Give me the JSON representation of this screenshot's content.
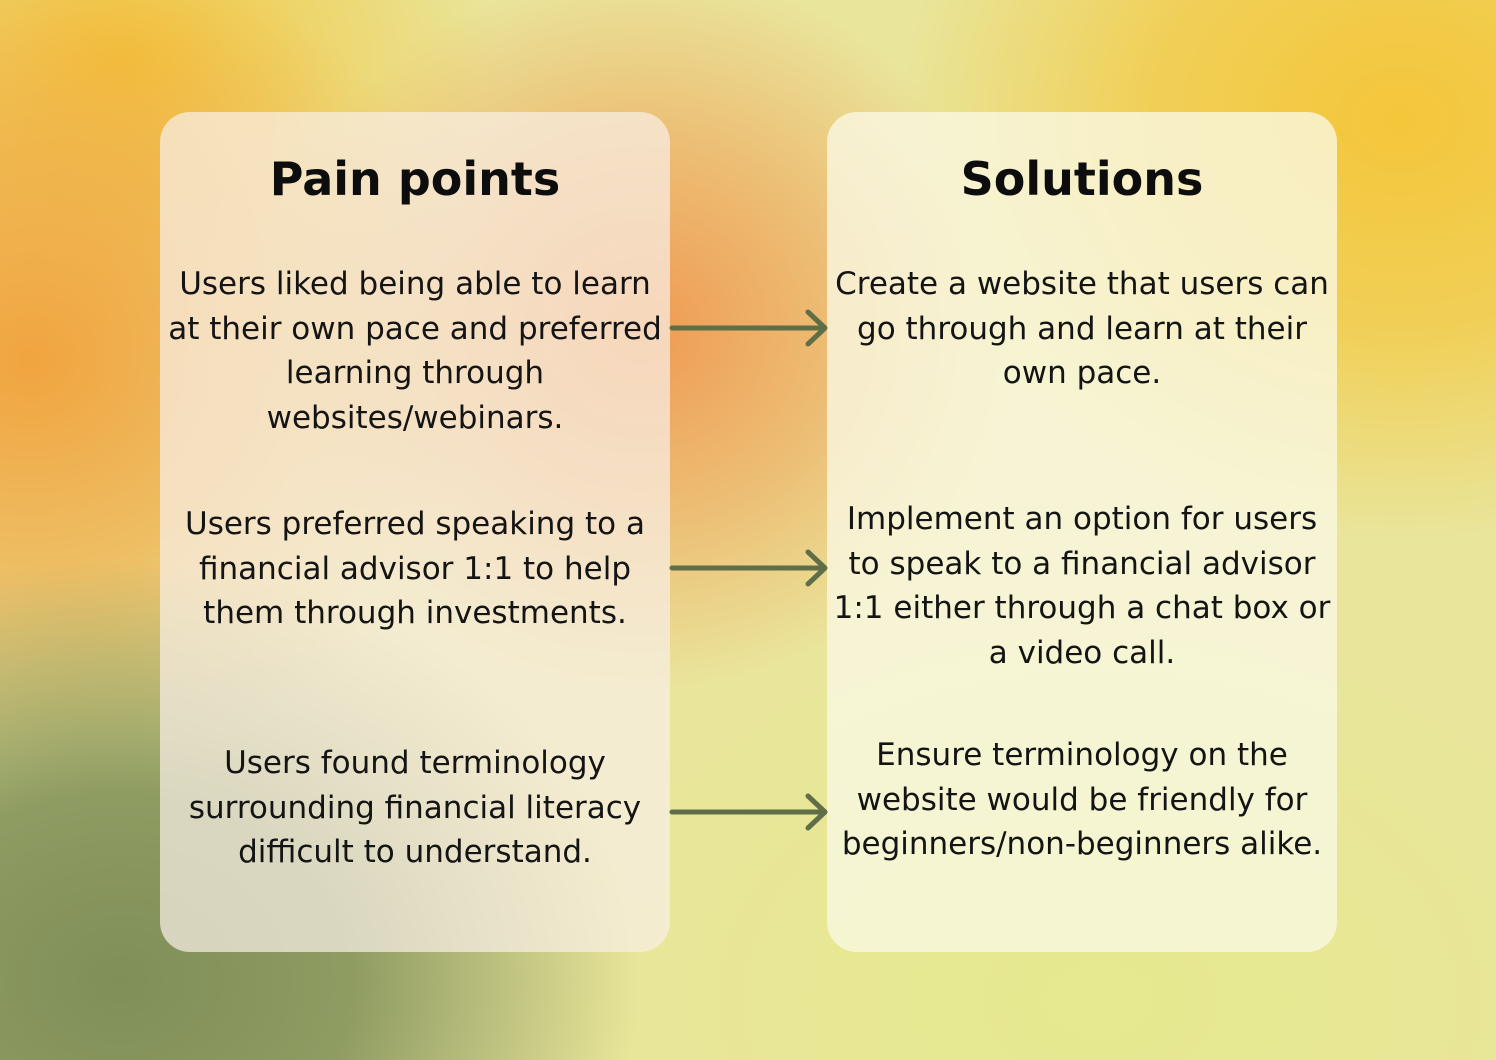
{
  "pain_points": {
    "title": "Pain points",
    "items": [
      "Users liked being able to learn at their own pace and preferred learning through websites/webinars.",
      "Users preferred speaking to a financial advisor 1:1 to help them through investments.",
      "Users found terminology surrounding financial literacy difficult to understand."
    ]
  },
  "solutions": {
    "title": "Solutions",
    "items": [
      "Create a website that users can go through and learn at their own pace.",
      "Implement an option for users to speak to a financial advisor 1:1 either through a chat box or a video call.",
      "Ensure terminology on the website would be friendly for beginners/non-beginners alike."
    ]
  },
  "colors": {
    "arrow": "#5f6e47",
    "text": "#141414"
  }
}
